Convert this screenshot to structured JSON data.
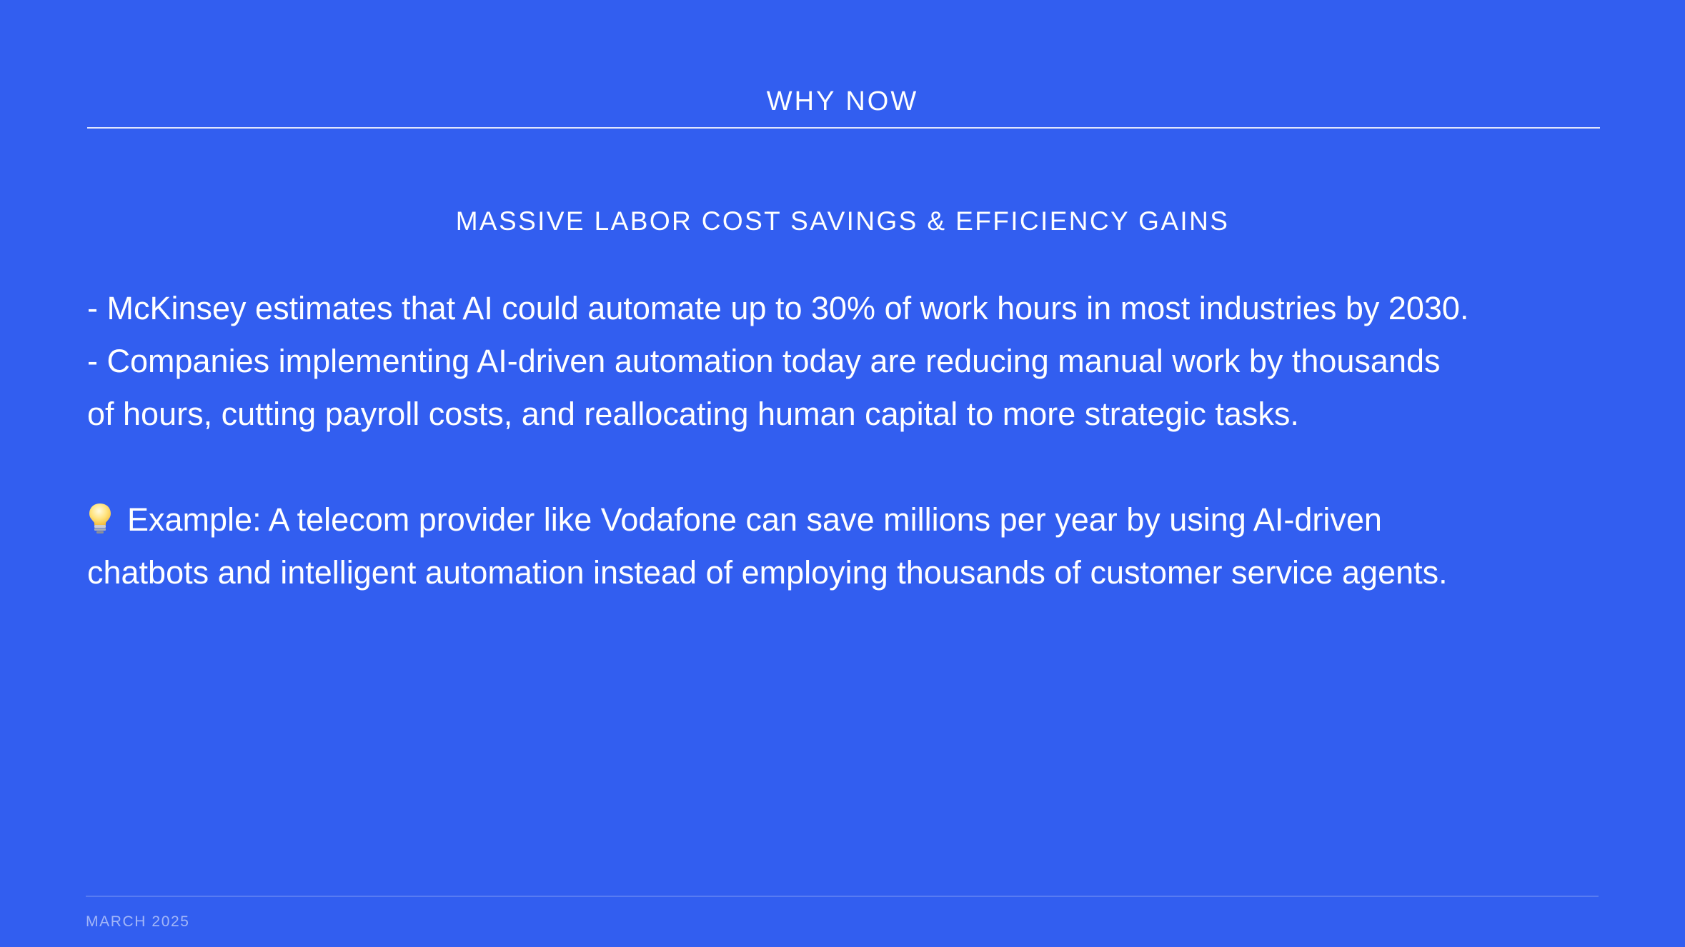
{
  "slide": {
    "title": "WHY NOW",
    "section_title": "MASSIVE LABOR COST SAVINGS & EFFICIENCY GAINS",
    "bullets": [
      "- McKinsey estimates that AI could automate up to 30% of work hours in most industries by 2030.",
      "- Companies implementing AI-driven automation today are reducing manual work by thousands",
      "of hours, cutting payroll costs, and reallocating human capital to more strategic tasks."
    ],
    "example": {
      "icon": "lightbulb-icon",
      "lines": [
        "Example: A telecom provider like Vodafone can save millions per year by using AI-driven",
        "chatbots and intelligent automation instead of employing thousands of customer service agents."
      ]
    }
  },
  "footer": {
    "date": "MARCH 2025"
  },
  "colors": {
    "background": "#325ef0",
    "text": "#ffffff"
  }
}
